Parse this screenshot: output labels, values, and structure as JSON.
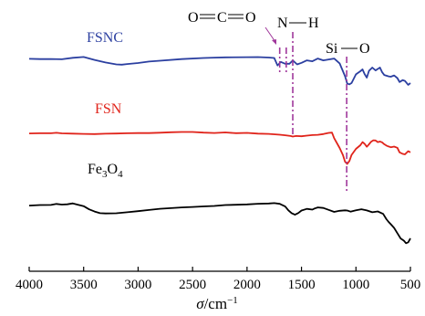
{
  "chart_data": {
    "type": "line",
    "title": "",
    "xlabel_symbol": "σ",
    "xlabel_unit": "/cm",
    "xlabel_exp": "−1",
    "xlim": [
      4000,
      500
    ],
    "x_ticks": [
      4000,
      3500,
      3000,
      2500,
      2000,
      1500,
      1000,
      500
    ],
    "ylabel": "",
    "grid": false,
    "y_ticks_shown": false,
    "colors": {
      "FSNC": "#2b3fa0",
      "FSN": "#e0241b",
      "Fe3O4": "#000000",
      "markers": "#a0379b"
    },
    "series": [
      {
        "name": "FSNC",
        "label_main": "FSNC",
        "color": "#2b3fa0",
        "points": [
          [
            4000,
            0.44
          ],
          [
            3900,
            0.47
          ],
          [
            3800,
            0.46
          ],
          [
            3700,
            0.49
          ],
          [
            3600,
            0.33
          ],
          [
            3500,
            0.24
          ],
          [
            3400,
            0.56
          ],
          [
            3300,
            0.84
          ],
          [
            3200,
            1.05
          ],
          [
            3150,
            1.08
          ],
          [
            3100,
            1.01
          ],
          [
            3000,
            0.9
          ],
          [
            2900,
            0.74
          ],
          [
            2800,
            0.65
          ],
          [
            2600,
            0.47
          ],
          [
            2400,
            0.35
          ],
          [
            2300,
            0.31
          ],
          [
            2200,
            0.28
          ],
          [
            2000,
            0.26
          ],
          [
            1900,
            0.25
          ],
          [
            1800,
            0.3
          ],
          [
            1750,
            0.35
          ],
          [
            1720,
            1.17
          ],
          [
            1690,
            0.78
          ],
          [
            1650,
            0.98
          ],
          [
            1610,
            0.98
          ],
          [
            1580,
            0.62
          ],
          [
            1540,
            1.05
          ],
          [
            1500,
            0.88
          ],
          [
            1450,
            0.61
          ],
          [
            1400,
            0.71
          ],
          [
            1350,
            0.41
          ],
          [
            1300,
            0.61
          ],
          [
            1250,
            0.51
          ],
          [
            1200,
            0.41
          ],
          [
            1150,
            0.94
          ],
          [
            1100,
            2.34
          ],
          [
            1080,
            3.14
          ],
          [
            1060,
            3.24
          ],
          [
            1040,
            3.09
          ],
          [
            1000,
            2.14
          ],
          [
            960,
            1.8
          ],
          [
            940,
            1.6
          ],
          [
            920,
            2.11
          ],
          [
            900,
            2.5
          ],
          [
            880,
            1.75
          ],
          [
            850,
            1.4
          ],
          [
            820,
            1.71
          ],
          [
            800,
            1.55
          ],
          [
            780,
            1.4
          ],
          [
            760,
            1.89
          ],
          [
            740,
            2.21
          ],
          [
            700,
            2.36
          ],
          [
            680,
            2.4
          ],
          [
            650,
            2.26
          ],
          [
            620,
            2.55
          ],
          [
            600,
            2.98
          ],
          [
            570,
            2.77
          ],
          [
            550,
            2.86
          ],
          [
            520,
            3.29
          ],
          [
            500,
            3.1
          ]
        ]
      },
      {
        "name": "FSN",
        "label_main": "FSN",
        "color": "#e0241b",
        "points": [
          [
            4000,
            8.61
          ],
          [
            3900,
            8.59
          ],
          [
            3800,
            8.59
          ],
          [
            3750,
            8.54
          ],
          [
            3700,
            8.6
          ],
          [
            3600,
            8.63
          ],
          [
            3500,
            8.66
          ],
          [
            3400,
            8.68
          ],
          [
            3300,
            8.64
          ],
          [
            3200,
            8.62
          ],
          [
            3100,
            8.59
          ],
          [
            3000,
            8.57
          ],
          [
            2900,
            8.57
          ],
          [
            2800,
            8.53
          ],
          [
            2700,
            8.48
          ],
          [
            2600,
            8.45
          ],
          [
            2500,
            8.45
          ],
          [
            2400,
            8.52
          ],
          [
            2300,
            8.56
          ],
          [
            2200,
            8.5
          ],
          [
            2100,
            8.58
          ],
          [
            2000,
            8.55
          ],
          [
            1900,
            8.63
          ],
          [
            1800,
            8.66
          ],
          [
            1700,
            8.75
          ],
          [
            1650,
            8.81
          ],
          [
            1600,
            8.89
          ],
          [
            1580,
            8.95
          ],
          [
            1550,
            8.89
          ],
          [
            1500,
            8.92
          ],
          [
            1450,
            8.85
          ],
          [
            1400,
            8.79
          ],
          [
            1350,
            8.76
          ],
          [
            1300,
            8.68
          ],
          [
            1250,
            8.55
          ],
          [
            1220,
            8.52
          ],
          [
            1200,
            9.13
          ],
          [
            1150,
            10.2
          ],
          [
            1120,
            10.97
          ],
          [
            1100,
            11.7
          ],
          [
            1080,
            11.95
          ],
          [
            1060,
            11.63
          ],
          [
            1040,
            10.96
          ],
          [
            1000,
            10.3
          ],
          [
            960,
            9.9
          ],
          [
            940,
            9.56
          ],
          [
            920,
            9.75
          ],
          [
            900,
            10.07
          ],
          [
            880,
            9.8
          ],
          [
            860,
            9.51
          ],
          [
            840,
            9.36
          ],
          [
            820,
            9.38
          ],
          [
            800,
            9.56
          ],
          [
            780,
            9.5
          ],
          [
            760,
            9.58
          ],
          [
            740,
            9.79
          ],
          [
            720,
            9.94
          ],
          [
            700,
            10.04
          ],
          [
            680,
            10.12
          ],
          [
            650,
            10.05
          ],
          [
            620,
            10.18
          ],
          [
            600,
            10.68
          ],
          [
            570,
            10.85
          ],
          [
            550,
            10.9
          ],
          [
            520,
            10.55
          ],
          [
            500,
            10.68
          ]
        ]
      },
      {
        "name": "Fe₃O₄",
        "label_main": "Fe",
        "label_sub1": "3",
        "label_mid": "O",
        "label_sub2": "4",
        "color": "#000000",
        "points": [
          [
            4000,
            16.51
          ],
          [
            3900,
            16.45
          ],
          [
            3800,
            16.44
          ],
          [
            3750,
            16.33
          ],
          [
            3700,
            16.4
          ],
          [
            3650,
            16.37
          ],
          [
            3600,
            16.27
          ],
          [
            3550,
            16.42
          ],
          [
            3500,
            16.57
          ],
          [
            3450,
            16.92
          ],
          [
            3400,
            17.16
          ],
          [
            3350,
            17.34
          ],
          [
            3300,
            17.37
          ],
          [
            3200,
            17.35
          ],
          [
            3100,
            17.24
          ],
          [
            3000,
            17.12
          ],
          [
            2900,
            16.99
          ],
          [
            2800,
            16.86
          ],
          [
            2700,
            16.79
          ],
          [
            2600,
            16.71
          ],
          [
            2500,
            16.66
          ],
          [
            2400,
            16.6
          ],
          [
            2300,
            16.55
          ],
          [
            2200,
            16.45
          ],
          [
            2100,
            16.42
          ],
          [
            2000,
            16.38
          ],
          [
            1900,
            16.31
          ],
          [
            1800,
            16.28
          ],
          [
            1750,
            16.24
          ],
          [
            1700,
            16.32
          ],
          [
            1650,
            16.61
          ],
          [
            1620,
            17.03
          ],
          [
            1590,
            17.34
          ],
          [
            1560,
            17.51
          ],
          [
            1530,
            17.33
          ],
          [
            1500,
            17.05
          ],
          [
            1450,
            16.87
          ],
          [
            1400,
            16.95
          ],
          [
            1380,
            16.83
          ],
          [
            1350,
            16.71
          ],
          [
            1300,
            16.77
          ],
          [
            1250,
            16.98
          ],
          [
            1200,
            17.2
          ],
          [
            1150,
            17.08
          ],
          [
            1100,
            17.03
          ],
          [
            1080,
            17.05
          ],
          [
            1050,
            17.17
          ],
          [
            1000,
            17.02
          ],
          [
            950,
            16.91
          ],
          [
            900,
            17.04
          ],
          [
            850,
            17.24
          ],
          [
            800,
            17.15
          ],
          [
            750,
            17.42
          ],
          [
            720,
            18.0
          ],
          [
            700,
            18.3
          ],
          [
            680,
            18.55
          ],
          [
            650,
            18.95
          ],
          [
            620,
            19.53
          ],
          [
            590,
            20.11
          ],
          [
            560,
            20.35
          ],
          [
            540,
            20.63
          ],
          [
            520,
            20.53
          ],
          [
            500,
            20.1
          ]
        ]
      }
    ],
    "annotations": [
      {
        "text_left": "O",
        "text_mid": "C",
        "text_right": "O",
        "x": 1700,
        "bond": "double",
        "line_kind": "dash-dot"
      },
      {
        "text_left": "N",
        "text_right": "H",
        "x": 1580,
        "bond": "single",
        "line_kind": "dash-dot"
      },
      {
        "text_left": "Si",
        "text_right": "O",
        "x": 1085,
        "bond": "single",
        "line_kind": "dash-dot"
      }
    ]
  }
}
